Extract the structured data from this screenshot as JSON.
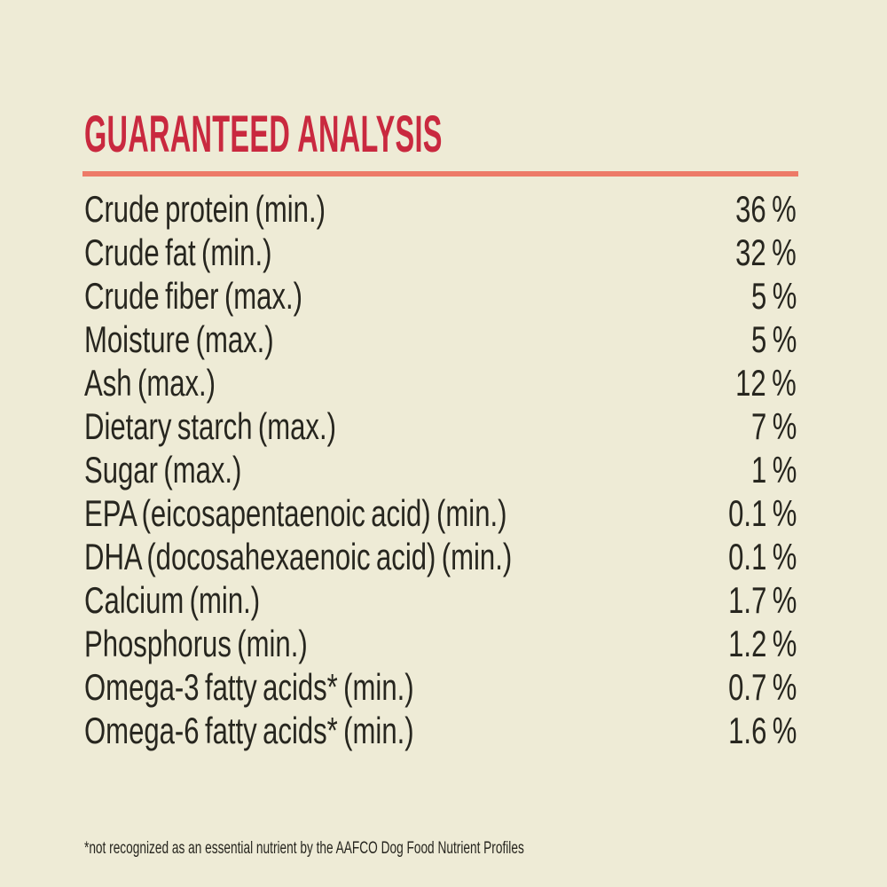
{
  "colors": {
    "background": "#eeebd6",
    "title": "#c9293f",
    "divider": "#ed7a68",
    "text": "#27261f"
  },
  "header": {
    "title": "GUARANTEED ANALYSIS"
  },
  "table": {
    "rows": [
      {
        "label": "Crude protein (min.)",
        "value": "36 %"
      },
      {
        "label": "Crude fat (min.)",
        "value": "32 %"
      },
      {
        "label": "Crude fiber (max.)",
        "value": "5 %"
      },
      {
        "label": "Moisture (max.)",
        "value": "5 %"
      },
      {
        "label": "Ash (max.)",
        "value": "12 %"
      },
      {
        "label": "Dietary starch (max.)",
        "value": "7 %"
      },
      {
        "label": "Sugar (max.)",
        "value": "1 %"
      },
      {
        "label": "EPA (eicosapentaenoic acid) (min.)",
        "value": "0.1 %"
      },
      {
        "label": "DHA (docosahexaenoic acid) (min.)",
        "value": "0.1 %"
      },
      {
        "label": "Calcium (min.)",
        "value": "1.7 %"
      },
      {
        "label": "Phosphorus (min.)",
        "value": "1.2 %"
      },
      {
        "label": "Omega-3 fatty acids* (min.)",
        "value": "0.7 %"
      },
      {
        "label": "Omega-6 fatty acids* (min.)",
        "value": "1.6 %"
      }
    ]
  },
  "footnote": {
    "text": "*not recognized as an essential nutrient by the AAFCO Dog Food Nutrient Profiles"
  }
}
